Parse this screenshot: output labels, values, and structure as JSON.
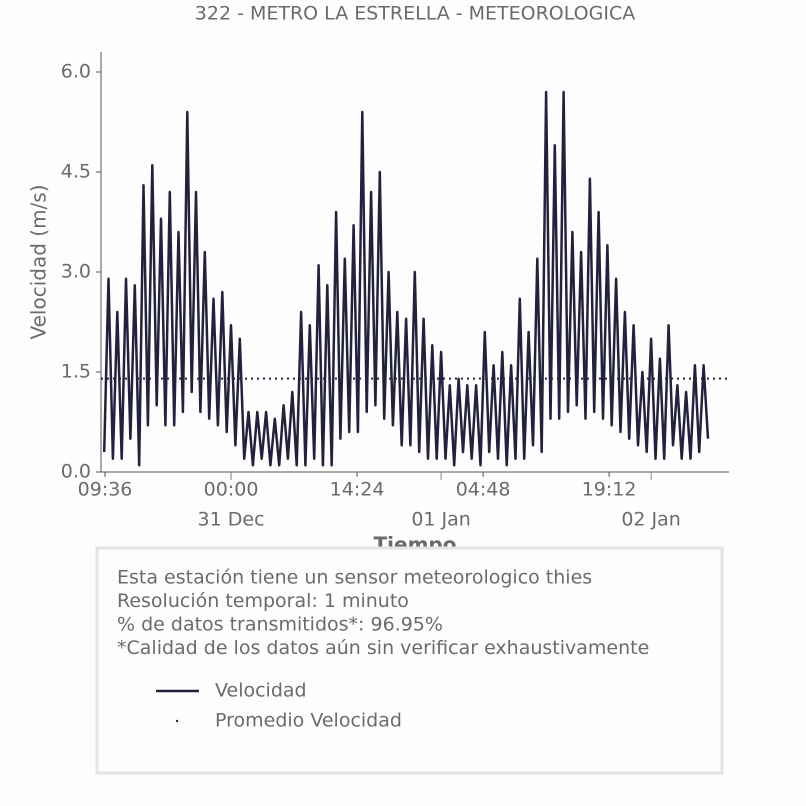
{
  "chart_data": {
    "type": "line",
    "title": "322 - METRO LA ESTRELLA - METEOROLOGICA",
    "x_label": "Tiempo",
    "y_label": "Velocidad (m/s)",
    "xlim": [
      9.14,
      80.9
    ],
    "xticks": [
      {
        "value": 9.6,
        "label": "09:36"
      },
      {
        "value": 24,
        "label": "00:00"
      },
      {
        "value": 38.4,
        "label": "14:24"
      },
      {
        "value": 52.8,
        "label": "04:48"
      },
      {
        "value": 67.2,
        "label": "19:12"
      }
    ],
    "xdate_ticks": [
      {
        "value": 24,
        "label": "31 Dec"
      },
      {
        "value": 48,
        "label": "01 Jan"
      },
      {
        "value": 72,
        "label": "02 Jan"
      }
    ],
    "ylim": [
      0,
      6.3
    ],
    "yticks": [
      {
        "value": 0,
        "label": "0.0"
      },
      {
        "value": 1.5,
        "label": "1.5"
      },
      {
        "value": 3,
        "label": "3.0"
      },
      {
        "value": 4.5,
        "label": "4.5"
      },
      {
        "value": 6,
        "label": "6.0"
      }
    ],
    "series": [
      {
        "name": "Velocidad",
        "color": "#22223f",
        "x": [
          9.5,
          10,
          10.5,
          11,
          11.5,
          12,
          12.5,
          13,
          13.5,
          14,
          14.5,
          15,
          15.5,
          16,
          16.5,
          17,
          17.5,
          18,
          18.5,
          19,
          19.5,
          20,
          20.5,
          21,
          21.5,
          22,
          22.5,
          23,
          23.5,
          24,
          24.5,
          25,
          25.5,
          26,
          26.5,
          27,
          27.5,
          28,
          28.5,
          29,
          29.5,
          30,
          30.5,
          31,
          31.5,
          32,
          32.5,
          33,
          33.5,
          34,
          34.5,
          35,
          35.5,
          36,
          36.5,
          37,
          37.5,
          38,
          38.5,
          39,
          39.5,
          40,
          40.5,
          41,
          41.5,
          42,
          42.5,
          43,
          43.5,
          44,
          44.5,
          45,
          45.5,
          46,
          46.5,
          47,
          47.5,
          48,
          48.5,
          49,
          49.5,
          50,
          50.5,
          51,
          51.5,
          52,
          52.5,
          53,
          53.5,
          54,
          54.5,
          55,
          55.5,
          56,
          56.5,
          57,
          57.5,
          58,
          58.5,
          59,
          59.5,
          60,
          60.5,
          61,
          61.5,
          62,
          62.5,
          63,
          63.5,
          64,
          64.5,
          65,
          65.5,
          66,
          66.5,
          67,
          67.5,
          68,
          68.5,
          69,
          69.5,
          70,
          70.5,
          71,
          71.5,
          72,
          72.5,
          73,
          73.5,
          74,
          74.5,
          75,
          75.5,
          76,
          76.5,
          77,
          77.5,
          78,
          78.5
        ],
        "values": [
          0.3,
          2.9,
          0.2,
          2.4,
          0.2,
          2.9,
          0.5,
          2.8,
          0.1,
          4.3,
          0.7,
          4.6,
          1.0,
          3.8,
          0.7,
          4.2,
          0.7,
          3.6,
          0.9,
          5.4,
          1.2,
          4.2,
          0.9,
          3.3,
          0.8,
          2.6,
          0.7,
          2.7,
          0.6,
          2.2,
          0.4,
          2.0,
          0.2,
          0.9,
          0.1,
          0.9,
          0.2,
          0.9,
          0.1,
          0.8,
          0.1,
          1.0,
          0.2,
          1.2,
          0.1,
          2.4,
          0.1,
          2.2,
          0.2,
          3.1,
          0.1,
          2.8,
          0.1,
          3.9,
          0.5,
          3.2,
          0.6,
          3.7,
          0.6,
          5.4,
          0.9,
          4.2,
          1.0,
          4.5,
          0.8,
          3.0,
          0.7,
          2.4,
          0.4,
          2.3,
          0.4,
          3.0,
          0.3,
          2.3,
          0.2,
          1.9,
          0.2,
          1.8,
          0.2,
          1.3,
          0.1,
          1.4,
          0.3,
          1.3,
          0.2,
          1.3,
          0.1,
          2.1,
          0.3,
          1.6,
          0.2,
          1.8,
          0.1,
          1.6,
          0.2,
          2.6,
          0.2,
          2.1,
          0.4,
          3.2,
          0.3,
          5.7,
          0.8,
          4.9,
          0.8,
          5.7,
          0.9,
          3.6,
          1.0,
          3.3,
          0.8,
          4.4,
          0.9,
          3.9,
          0.8,
          3.4,
          0.7,
          2.9,
          0.6,
          2.4,
          0.5,
          2.2,
          0.4,
          1.5,
          0.3,
          2.0,
          0.2,
          1.7,
          0.2,
          2.2,
          0.4,
          1.3,
          0.2,
          1.2,
          0.2,
          1.6,
          0.3,
          1.6,
          0.5
        ]
      }
    ],
    "reference_line": {
      "name": "Promedio Velocidad",
      "value": 1.4,
      "color": "#22223f"
    },
    "notes": [
      "Esta estación tiene un sensor meteorologico thies",
      "Resolución temporal: 1 minuto",
      "% de datos transmitidos*: 96.95%",
      "*Calidad de los datos aún sin verificar exhaustivamente"
    ]
  }
}
